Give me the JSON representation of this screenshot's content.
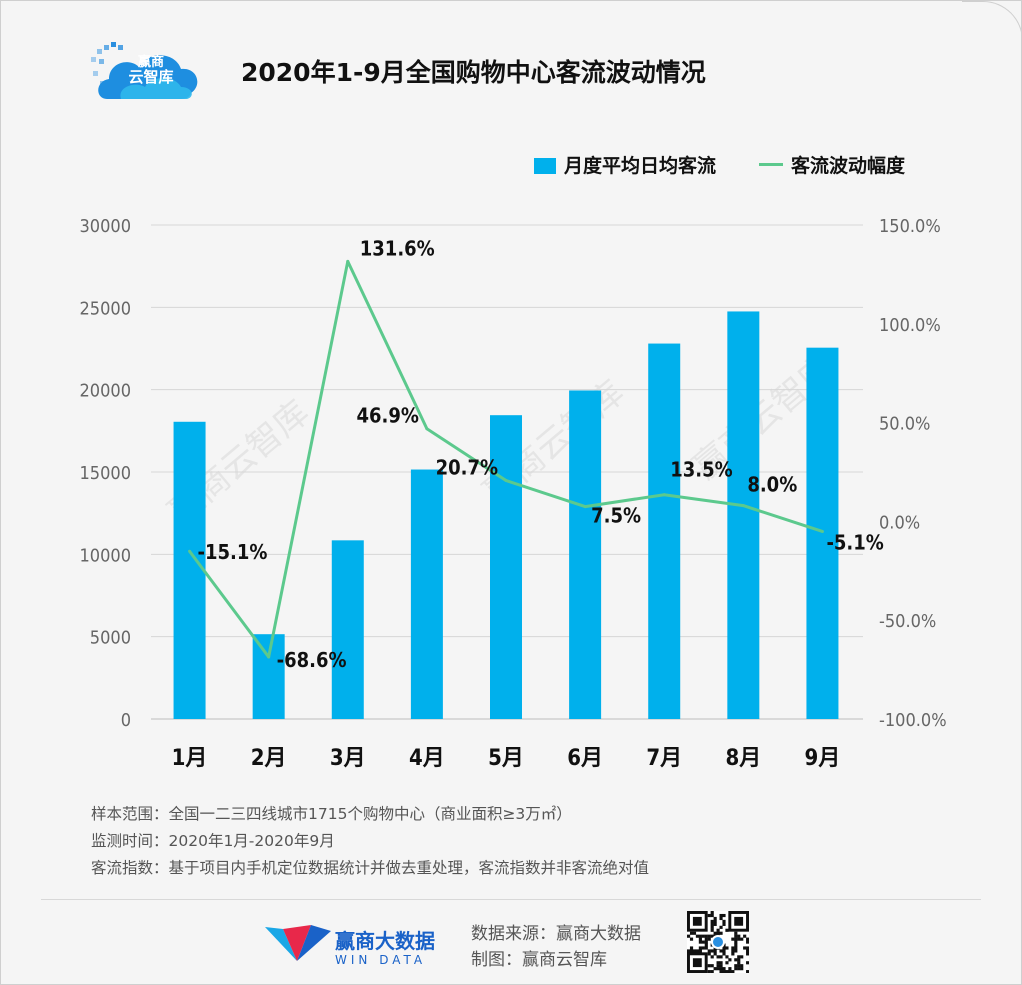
{
  "logo": {
    "line1": "赢商",
    "line2": "云智库"
  },
  "title": "2020年1-9月全国购物中心客流波动情况",
  "legend": {
    "bar": "月度平均日均客流",
    "line": "客流波动幅度"
  },
  "colors": {
    "bar": "#00b0ec",
    "line": "#5cc98d",
    "grid": "#d6d6d6"
  },
  "chart_data": {
    "type": "bar",
    "categories": [
      "1月",
      "2月",
      "3月",
      "4月",
      "5月",
      "6月",
      "7月",
      "8月",
      "9月"
    ],
    "series": [
      {
        "name": "月度平均日均客流",
        "type": "bar",
        "axis": "left",
        "values": [
          18050,
          5150,
          10850,
          15150,
          18450,
          19950,
          22800,
          24750,
          22550
        ]
      },
      {
        "name": "客流波动幅度",
        "type": "line",
        "axis": "right",
        "values": [
          -15.1,
          -68.6,
          131.6,
          46.9,
          20.7,
          7.5,
          13.5,
          8.0,
          -5.1
        ],
        "labels": [
          "-15.1%",
          "-68.6%",
          "131.6%",
          "46.9%",
          "20.7%",
          "7.5%",
          "13.5%",
          "8.0%",
          "-5.1%"
        ]
      }
    ],
    "left_axis": {
      "ylim": [
        0,
        30000
      ],
      "ticks": [
        "0",
        "5000",
        "10000",
        "15000",
        "20000",
        "25000",
        "30000"
      ]
    },
    "right_axis": {
      "ylim": [
        -100,
        150
      ],
      "ticks": [
        "-100.0%",
        "-50.0%",
        "0.0%",
        "50.0%",
        "100.0%",
        "150.0%"
      ]
    },
    "grid": true,
    "legend_position": "top-right",
    "watermark": "赢商云智库"
  },
  "notes": [
    "样本范围：全国一二三四线城市1715个购物中心（商业面积≥3万㎡）",
    "监测时间：2020年1月-2020年9月",
    "客流指数：基于项目内手机定位数据统计并做去重处理，客流指数并非客流绝对值"
  ],
  "footer": {
    "brand_cn": "赢商大数据",
    "brand_en": "WIN DATA",
    "source": "数据来源：赢商大数据",
    "made_by": "制图：赢商云智库"
  }
}
